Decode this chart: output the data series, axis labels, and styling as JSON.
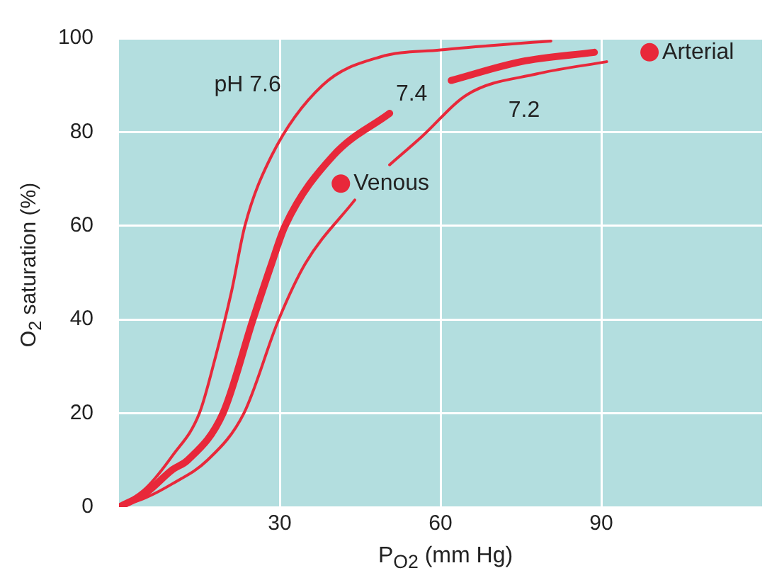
{
  "chart_data": {
    "type": "line",
    "xlabel": "P$_{O2}$ (mm Hg)",
    "ylabel": "O$_{2}$ saturation (%)",
    "xlim": [
      0,
      120
    ],
    "xticks": [
      30,
      60,
      90
    ],
    "ylim": [
      0,
      100
    ],
    "yticks": [
      0,
      20,
      40,
      60,
      80,
      100
    ],
    "grid": true,
    "legend": false,
    "marker": "none",
    "line_style": "solid",
    "series": [
      {
        "name": "pH 7.6",
        "color": "#e8283a",
        "x": [
          0,
          5,
          10,
          15,
          18,
          21,
          23.5,
          28.5,
          38,
          48.7,
          60,
          70,
          80.6
        ],
        "values": [
          0,
          4,
          11,
          20,
          32,
          46,
          60,
          75,
          90,
          96,
          97.5,
          98.5,
          99.4
        ]
      },
      {
        "name": "7.4",
        "color": "#e8283a",
        "x": [
          0,
          5,
          10,
          12.8,
          19.4,
          25,
          28.5,
          31,
          40,
          50.5,
          56,
          62,
          75,
          88.7
        ],
        "values": [
          0,
          3,
          8,
          10,
          20,
          40,
          52,
          60,
          75,
          84,
          null,
          91,
          95,
          97
        ]
      },
      {
        "name": "7.2",
        "color": "#e8283a",
        "x": [
          0,
          5,
          10,
          16.5,
          23.3,
          29.8,
          34.8,
          44,
          47,
          50.5,
          56.5,
          65,
          78,
          91
        ],
        "values": [
          0,
          2,
          5,
          10,
          20,
          40,
          52,
          65.5,
          null,
          73,
          79,
          88,
          92.4,
          95
        ]
      },
      {
        "type": "scatter",
        "name": "Venous",
        "color": "#e8283a",
        "marker": "circle",
        "x": [
          41.4
        ],
        "values": [
          69
        ]
      },
      {
        "type": "scatter",
        "name": "Arterial",
        "color": "#e8283a",
        "marker": "circle",
        "x": [
          99
        ],
        "values": [
          97
        ]
      }
    ]
  }
}
